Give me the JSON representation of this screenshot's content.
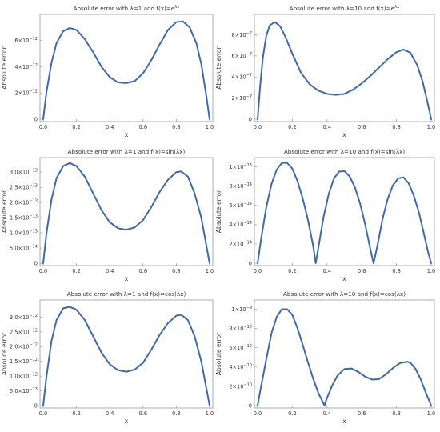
{
  "chart_data": [
    {
      "type": "line",
      "title_pre": "Absolute error with ",
      "title_lambda": "λ=1 and f(x)=e",
      "title_sup": "λx",
      "title_post": "",
      "xlabel": "x",
      "ylabel": "Absolute error",
      "xlim": [
        0,
        1
      ],
      "ylim": [
        0,
        7.8e-12
      ],
      "x_ticks": [
        "0.0",
        "0.2",
        "0.4",
        "0.6",
        "0.8",
        "1.0"
      ],
      "y_ticks": [
        {
          "v": 0,
          "m": "0",
          "e": ""
        },
        {
          "v": 2e-12,
          "m": "2×10",
          "e": "−12"
        },
        {
          "v": 4e-12,
          "m": "4×10",
          "e": "−12"
        },
        {
          "v": 6e-12,
          "m": "6×10",
          "e": "−12"
        }
      ],
      "x": [
        0,
        0.02,
        0.05,
        0.08,
        0.12,
        0.16,
        0.2,
        0.25,
        0.3,
        0.35,
        0.4,
        0.45,
        0.5,
        0.55,
        0.6,
        0.65,
        0.7,
        0.75,
        0.8,
        0.84,
        0.88,
        0.92,
        0.95,
        0.98,
        1.0
      ],
      "y": [
        0,
        2.1e-12,
        4.3e-12,
        5.8e-12,
        6.7e-12,
        6.95e-12,
        6.8e-12,
        6.1e-12,
        5.1e-12,
        4e-12,
        3.2e-12,
        2.8e-12,
        2.75e-12,
        2.9e-12,
        3.5e-12,
        4.5e-12,
        5.7e-12,
        6.8e-12,
        7.4e-12,
        7.45e-12,
        7e-12,
        5.8e-12,
        4.2e-12,
        1.8e-12,
        0
      ]
    },
    {
      "type": "line",
      "title_pre": "Absolute error with ",
      "title_lambda": "λ=10 and f(x)=e",
      "title_sup": "λx",
      "title_post": "",
      "xlabel": "x",
      "ylabel": "Absolute error",
      "xlim": [
        0,
        1
      ],
      "ylim": [
        0,
        9.7e-07
      ],
      "x_ticks": [
        "0.0",
        "0.2",
        "0.4",
        "0.6",
        "0.8",
        "1.0"
      ],
      "y_ticks": [
        {
          "v": 0,
          "m": "0",
          "e": ""
        },
        {
          "v": 2e-07,
          "m": "2×10",
          "e": "−7"
        },
        {
          "v": 4e-07,
          "m": "4×10",
          "e": "−7"
        },
        {
          "v": 6e-07,
          "m": "6×10",
          "e": "−7"
        },
        {
          "v": 8e-07,
          "m": "8×10",
          "e": "−7"
        }
      ],
      "x": [
        0,
        0.015,
        0.03,
        0.05,
        0.07,
        0.1,
        0.13,
        0.16,
        0.2,
        0.25,
        0.3,
        0.35,
        0.4,
        0.45,
        0.5,
        0.55,
        0.6,
        0.65,
        0.7,
        0.75,
        0.8,
        0.84,
        0.88,
        0.92,
        0.95,
        0.98,
        1.0
      ],
      "y": [
        0,
        3.2e-07,
        5.8e-07,
        7.9e-07,
        8.9e-07,
        9.2e-07,
        8.8e-07,
        7.8e-07,
        6.2e-07,
        4.4e-07,
        3.3e-07,
        2.7e-07,
        2.4e-07,
        2.3e-07,
        2.4e-07,
        2.8e-07,
        3.4e-07,
        4.1e-07,
        4.9e-07,
        5.7e-07,
        6.35e-07,
        6.6e-07,
        6.3e-07,
        5.1e-07,
        3.6e-07,
        1.5e-07,
        0
      ]
    },
    {
      "type": "line",
      "title_pre": "Absolute error with ",
      "title_lambda": "λ=1 and f(x)=sin(",
      "title_sup": "",
      "title_post": "λx)",
      "xlabel": "x",
      "ylabel": "Absolute error",
      "xlim": [
        0,
        1
      ],
      "ylim": [
        0,
        3.4e-13
      ],
      "x_ticks": [
        "0.0",
        "0.2",
        "0.4",
        "0.6",
        "0.8",
        "1.0"
      ],
      "y_ticks": [
        {
          "v": 0,
          "m": "0",
          "e": ""
        },
        {
          "v": 5e-14,
          "m": "5.0×10",
          "e": "−14"
        },
        {
          "v": 1e-13,
          "m": "1.0×10",
          "e": "−13"
        },
        {
          "v": 1.5e-13,
          "m": "1.5×10",
          "e": "−13"
        },
        {
          "v": 2e-13,
          "m": "2.0×10",
          "e": "−13"
        },
        {
          "v": 2.5e-13,
          "m": "2.5×10",
          "e": "−13"
        },
        {
          "v": 3e-13,
          "m": "3.0×10",
          "e": "−13"
        }
      ],
      "x": [
        0,
        0.02,
        0.05,
        0.08,
        0.12,
        0.16,
        0.2,
        0.25,
        0.3,
        0.35,
        0.4,
        0.45,
        0.5,
        0.55,
        0.6,
        0.65,
        0.7,
        0.75,
        0.8,
        0.83,
        0.87,
        0.91,
        0.95,
        0.98,
        1.0
      ],
      "y": [
        0,
        1e-13,
        2.1e-13,
        2.8e-13,
        3.2e-13,
        3.3e-13,
        3.2e-13,
        2.85e-13,
        2.3e-13,
        1.75e-13,
        1.35e-13,
        1.15e-13,
        1.1e-13,
        1.18e-13,
        1.42e-13,
        1.85e-13,
        2.35e-13,
        2.75e-13,
        3e-13,
        3.02e-13,
        2.85e-13,
        2.3e-13,
        1.5e-13,
        6e-14,
        0
      ]
    },
    {
      "type": "line",
      "title_pre": "Absolute error with ",
      "title_lambda": "λ=10 and f(x)=sin(",
      "title_sup": "",
      "title_post": "λx)",
      "xlabel": "x",
      "ylabel": "Absolute error",
      "xlim": [
        0,
        1
      ],
      "ylim": [
        0,
        1.07e-13
      ],
      "x_ticks": [
        "0.0",
        "0.2",
        "0.4",
        "0.6",
        "0.8",
        "1.0"
      ],
      "y_ticks": [
        {
          "v": 0,
          "m": "0",
          "e": ""
        },
        {
          "v": 2e-14,
          "m": "2×10",
          "e": "−14"
        },
        {
          "v": 4e-14,
          "m": "4×10",
          "e": "−14"
        },
        {
          "v": 6e-14,
          "m": "6×10",
          "e": "−14"
        },
        {
          "v": 8e-14,
          "m": "8×10",
          "e": "−14"
        },
        {
          "v": 1e-13,
          "m": "1×10",
          "e": "−13"
        }
      ],
      "x": [
        0,
        0.02,
        0.05,
        0.08,
        0.11,
        0.14,
        0.17,
        0.2,
        0.23,
        0.26,
        0.29,
        0.32,
        0.335,
        0.35,
        0.38,
        0.41,
        0.44,
        0.47,
        0.5,
        0.53,
        0.56,
        0.59,
        0.62,
        0.65,
        0.668,
        0.69,
        0.72,
        0.75,
        0.78,
        0.81,
        0.84,
        0.87,
        0.9,
        0.93,
        0.96,
        0.98,
        1.0
      ],
      "y": [
        0,
        2.5e-14,
        5.8e-14,
        8.2e-14,
        9.7e-14,
        1.04e-13,
        1.04e-13,
        9.8e-14,
        8.5e-14,
        6.7e-14,
        4.5e-14,
        1.8e-14,
        0,
        1.6e-14,
        4.8e-14,
        7.2e-14,
        8.8e-14,
        9.5e-14,
        9.55e-14,
        9e-14,
        7.9e-14,
        6.2e-14,
        4e-14,
        1.4e-14,
        0,
        1.8e-14,
        4.6e-14,
        6.7e-14,
        8.1e-14,
        8.8e-14,
        8.9e-14,
        8.3e-14,
        7e-14,
        5.2e-14,
        2.9e-14,
        1.3e-14,
        0
      ]
    },
    {
      "type": "line",
      "title_pre": "Absolute error with ",
      "title_lambda": "λ=1 and f(x)=cos(",
      "title_sup": "",
      "title_post": "λx)",
      "xlabel": "x",
      "ylabel": "Absolute error",
      "xlim": [
        0,
        1
      ],
      "ylim": [
        0,
        3.5e-12
      ],
      "x_ticks": [
        "0.0",
        "0.2",
        "0.4",
        "0.6",
        "0.8",
        "1.0"
      ],
      "y_ticks": [
        {
          "v": 0,
          "m": "0",
          "e": ""
        },
        {
          "v": 5e-13,
          "m": "5.0×10",
          "e": "−13"
        },
        {
          "v": 1e-12,
          "m": "1.0×10",
          "e": "−12"
        },
        {
          "v": 1.5e-12,
          "m": "1.5×10",
          "e": "−12"
        },
        {
          "v": 2e-12,
          "m": "2.0×10",
          "e": "−12"
        },
        {
          "v": 2.5e-12,
          "m": "2.5×10",
          "e": "−12"
        },
        {
          "v": 3e-12,
          "m": "3.0×10",
          "e": "−12"
        }
      ],
      "x": [
        0,
        0.02,
        0.05,
        0.08,
        0.12,
        0.16,
        0.2,
        0.25,
        0.3,
        0.35,
        0.4,
        0.45,
        0.5,
        0.55,
        0.6,
        0.65,
        0.7,
        0.75,
        0.8,
        0.83,
        0.87,
        0.91,
        0.95,
        0.98,
        1.0
      ],
      "y": [
        0,
        1e-12,
        2.2e-12,
        2.9e-12,
        3.3e-12,
        3.35e-12,
        3.25e-12,
        2.9e-12,
        2.35e-12,
        1.8e-12,
        1.4e-12,
        1.2e-12,
        1.15e-12,
        1.22e-12,
        1.45e-12,
        1.9e-12,
        2.4e-12,
        2.8e-12,
        3.05e-12,
        3.08e-12,
        2.9e-12,
        2.35e-12,
        1.5e-12,
        6e-13,
        0
      ]
    },
    {
      "type": "line",
      "title_pre": "Absolute error with ",
      "title_lambda": "λ=10 and f(x)=cos(",
      "title_sup": "",
      "title_post": "λx)",
      "xlabel": "x",
      "ylabel": "Absolute error",
      "xlim": [
        0,
        1
      ],
      "ylim": [
        0,
        1.07e-09
      ],
      "x_ticks": [
        "0.0",
        "0.2",
        "0.4",
        "0.6",
        "0.8",
        "1.0"
      ],
      "y_ticks": [
        {
          "v": 0,
          "m": "0",
          "e": ""
        },
        {
          "v": 2e-10,
          "m": "2×10",
          "e": "−10"
        },
        {
          "v": 4e-10,
          "m": "4×10",
          "e": "−10"
        },
        {
          "v": 6e-10,
          "m": "6×10",
          "e": "−10"
        },
        {
          "v": 8e-10,
          "m": "8×10",
          "e": "−10"
        },
        {
          "v": 1e-09,
          "m": "1×10",
          "e": "−9"
        }
      ],
      "x": [
        0,
        0.02,
        0.05,
        0.08,
        0.11,
        0.14,
        0.17,
        0.2,
        0.23,
        0.26,
        0.29,
        0.32,
        0.35,
        0.38,
        0.385,
        0.4,
        0.43,
        0.46,
        0.5,
        0.54,
        0.58,
        0.62,
        0.66,
        0.7,
        0.74,
        0.78,
        0.82,
        0.86,
        0.88,
        0.91,
        0.94,
        0.97,
        1.0
      ],
      "y": [
        0,
        2e-10,
        4.8e-10,
        7.5e-10,
        9.2e-10,
        1e-09,
        1e-09,
        9.4e-10,
        8e-10,
        6.3e-10,
        4.5e-10,
        2.8e-10,
        1.3e-10,
        2e-11,
        0,
        8e-11,
        2.1e-10,
        3.1e-10,
        3.8e-10,
        3.85e-10,
        3.5e-10,
        3e-10,
        2.7e-10,
        2.75e-10,
        3.25e-10,
        3.9e-10,
        4.4e-10,
        4.55e-10,
        4.45e-10,
        3.8e-10,
        2.7e-10,
        1.3e-10,
        0
      ]
    }
  ]
}
